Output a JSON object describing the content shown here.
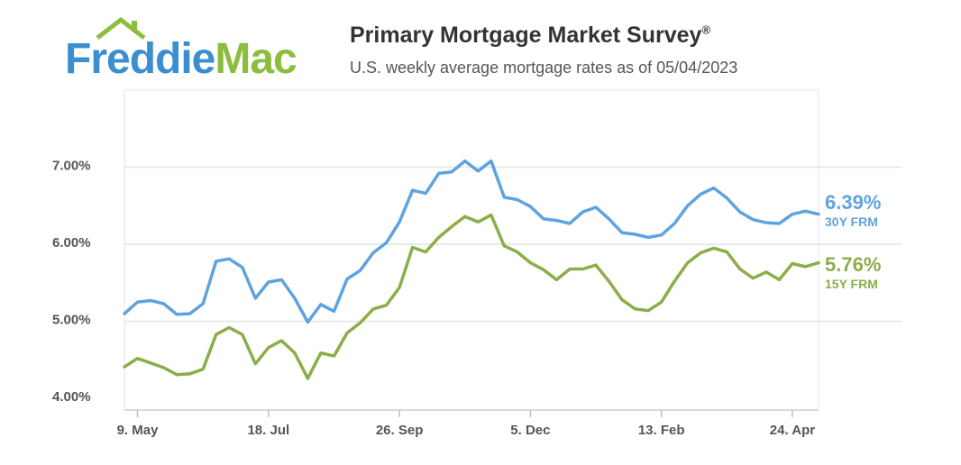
{
  "logo": {
    "part1": "Freddie",
    "part2": "Mac"
  },
  "header": {
    "title": "Primary Mortgage Market Survey",
    "title_mark": "®",
    "subtitle": "U.S. weekly average mortgage rates as of 05/04/2023"
  },
  "colors": {
    "series_30y": "#5fa3de",
    "series_15y": "#8cae4a",
    "text": "#333333",
    "axis": "#555555"
  },
  "callouts": {
    "y30": {
      "value": "6.39%",
      "label": "30Y FRM"
    },
    "y15": {
      "value": "5.76%",
      "label": "15Y FRM"
    }
  },
  "chart_data": {
    "type": "line",
    "title": "",
    "xlabel": "",
    "ylabel": "",
    "x_tick_labels": [
      "9. May",
      "18. Jul",
      "26. Sep",
      "5. Dec",
      "13. Feb",
      "24. Apr"
    ],
    "x_tick_indices": [
      1,
      11,
      21,
      31,
      41,
      51
    ],
    "y_ticks": [
      4,
      5,
      6,
      7
    ],
    "y_tick_labels": [
      "4.00%",
      "5.00%",
      "6.00%",
      "7.00%"
    ],
    "ylim": [
      3.85,
      8.0
    ],
    "grid": true,
    "series": [
      {
        "name": "30Y FRM",
        "values": [
          5.1,
          5.25,
          5.27,
          5.23,
          5.09,
          5.1,
          5.23,
          5.78,
          5.81,
          5.7,
          5.3,
          5.51,
          5.54,
          5.3,
          4.99,
          5.22,
          5.13,
          5.55,
          5.66,
          5.89,
          6.02,
          6.29,
          6.7,
          6.66,
          6.92,
          6.94,
          7.08,
          6.95,
          7.08,
          6.61,
          6.58,
          6.49,
          6.33,
          6.31,
          6.27,
          6.42,
          6.48,
          6.33,
          6.15,
          6.13,
          6.09,
          6.12,
          6.27,
          6.5,
          6.65,
          6.73,
          6.6,
          6.42,
          6.32,
          6.28,
          6.27,
          6.39,
          6.43,
          6.39
        ]
      },
      {
        "name": "15Y FRM",
        "values": [
          4.41,
          4.52,
          4.46,
          4.4,
          4.31,
          4.32,
          4.38,
          4.83,
          4.92,
          4.83,
          4.45,
          4.66,
          4.75,
          4.59,
          4.26,
          4.59,
          4.55,
          4.85,
          4.98,
          5.16,
          5.21,
          5.44,
          5.96,
          5.9,
          6.09,
          6.23,
          6.36,
          6.29,
          6.38,
          5.98,
          5.9,
          5.76,
          5.67,
          5.54,
          5.68,
          5.68,
          5.73,
          5.52,
          5.28,
          5.16,
          5.14,
          5.25,
          5.52,
          5.76,
          5.89,
          5.95,
          5.9,
          5.68,
          5.56,
          5.64,
          5.54,
          5.75,
          5.71,
          5.76
        ]
      }
    ]
  }
}
